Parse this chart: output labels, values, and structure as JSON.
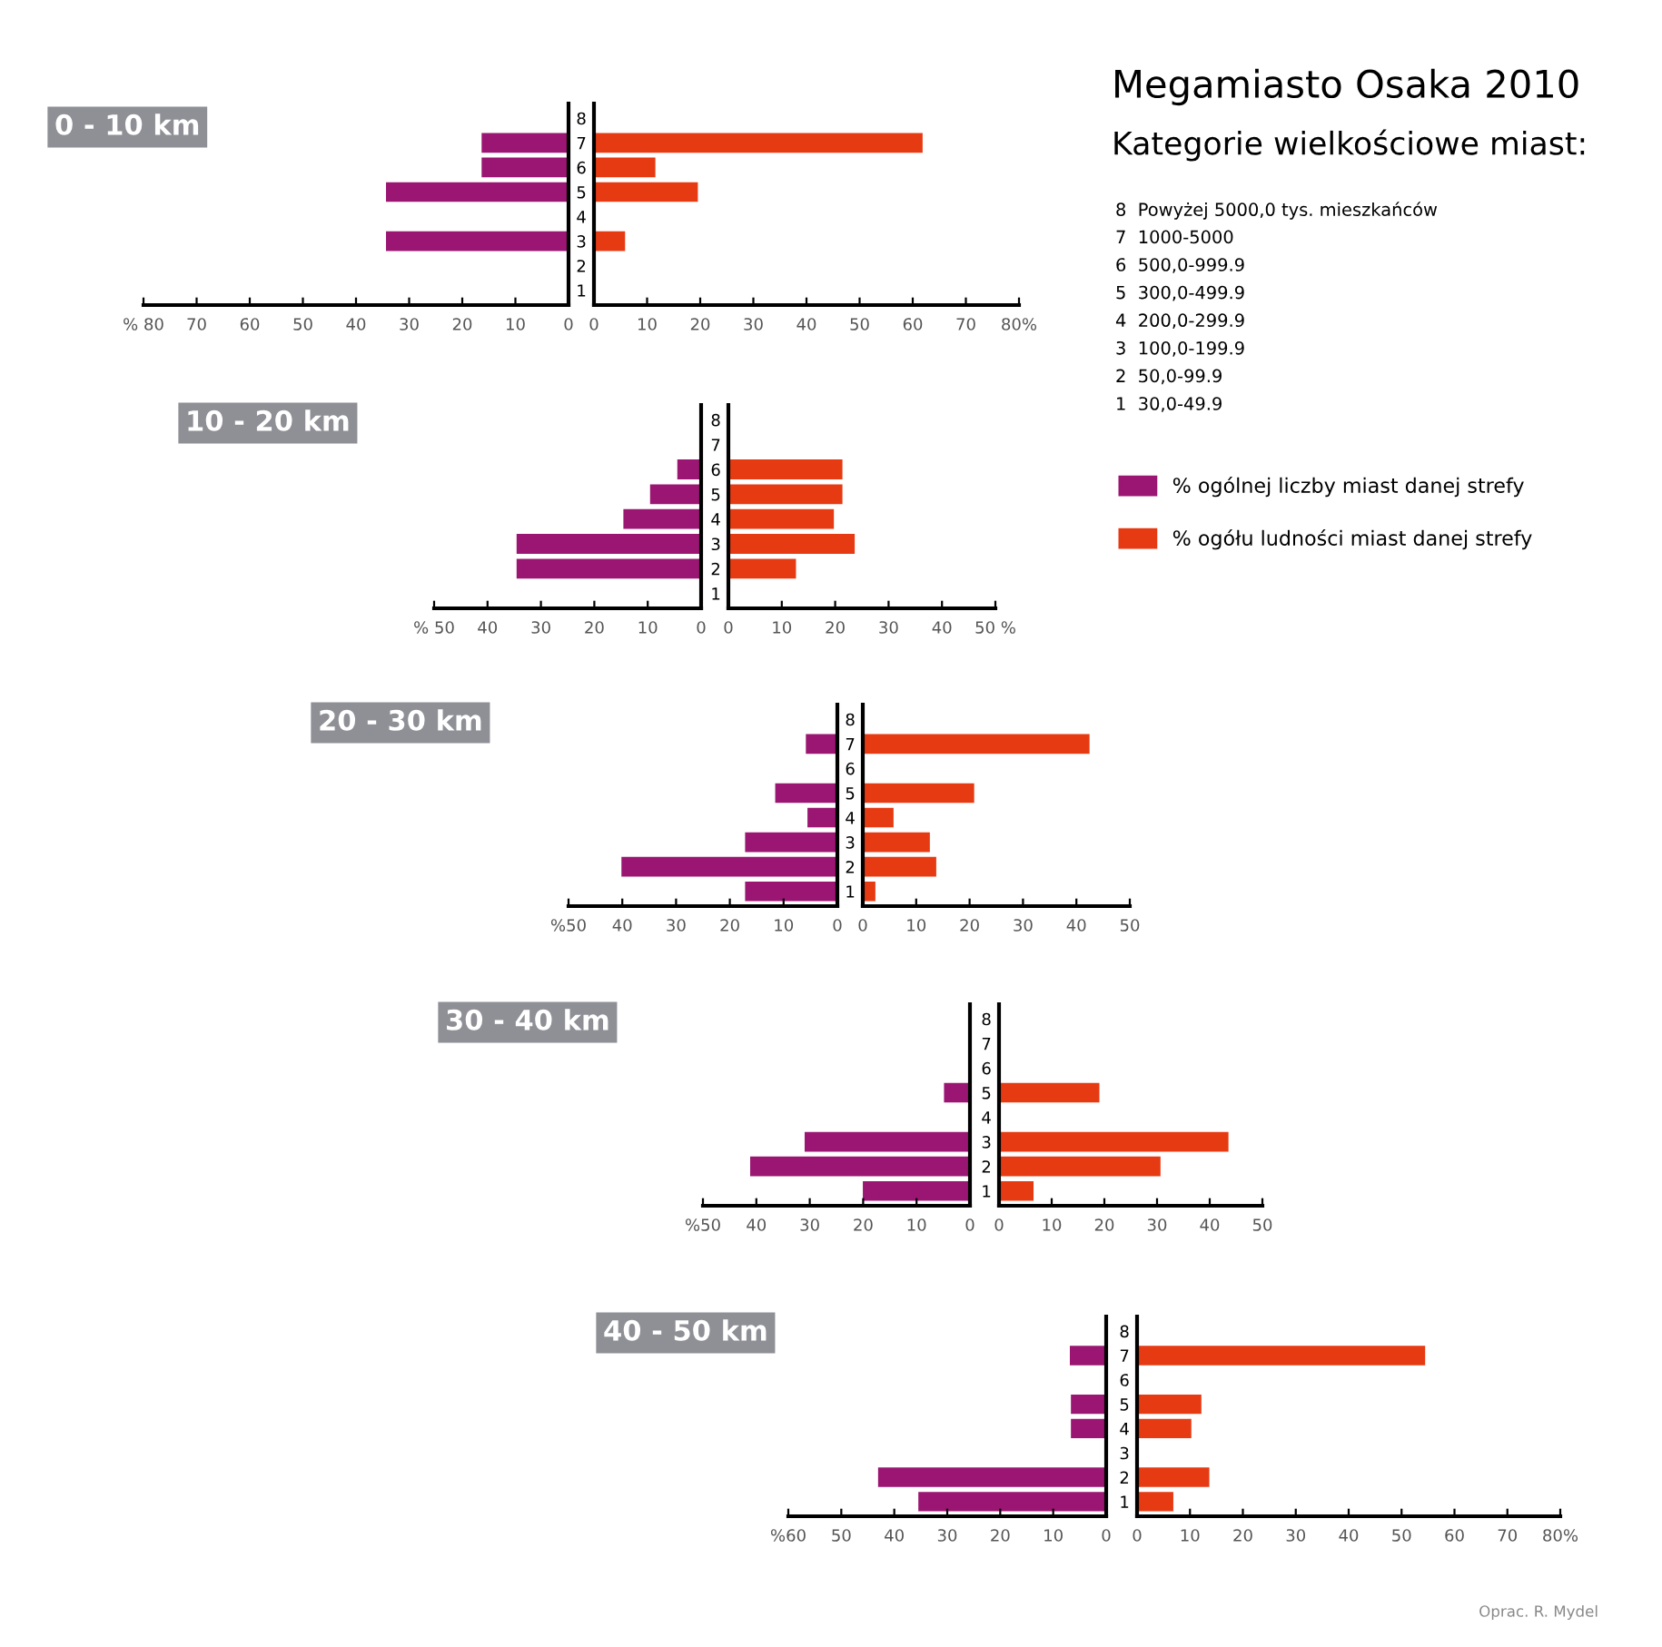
{
  "chart_data": [
    {
      "type": "bar",
      "orientation": "horizontal",
      "title": "0 - 10 km",
      "categories": [
        "8",
        "7",
        "6",
        "5",
        "4",
        "3",
        "2",
        "1"
      ],
      "tick_labels": "x",
      "legend": "right",
      "series": [
        {
          "name": "% ogólnej liczby miast danej strefy",
          "color": "#9a1672",
          "values": [
            null,
            16.5,
            16.5,
            34.5,
            null,
            34.5,
            null,
            null
          ]
        }
      ],
      "xlim": [
        80,
        0
      ],
      "xticks": [
        {
          "value": 80,
          "label": "% 80"
        },
        70,
        60,
        50,
        40,
        30,
        20,
        10,
        0
      ]
    },
    {
      "type": "bar",
      "orientation": "horizontal",
      "categories": [
        "8",
        "7",
        "6",
        "5",
        "4",
        "3",
        "2",
        "1"
      ],
      "legend": "right",
      "series": [
        {
          "name": "% ogółu ludności miast danej strefy",
          "color": "#e63a12",
          "values": [
            null,
            62,
            11.7,
            19.7,
            null,
            6,
            null,
            null
          ]
        }
      ],
      "xlim": [
        0,
        80
      ],
      "xticks": [
        0,
        10,
        20,
        30,
        40,
        50,
        60,
        70,
        {
          "value": 80,
          "label": "80%"
        }
      ]
    },
    {
      "type": "bar",
      "orientation": "horizontal",
      "title": "10 - 20 km",
      "categories": [
        "8",
        "7",
        "6",
        "5",
        "4",
        "3",
        "2",
        "1"
      ],
      "tick_labels": "x",
      "series": [
        {
          "color": "#9a1672",
          "values": [
            null,
            null,
            4.6,
            9.7,
            14.7,
            34.7,
            34.7,
            null
          ]
        }
      ],
      "xlim": [
        50,
        0
      ],
      "xticks": [
        {
          "value": 50,
          "label": "% 50"
        },
        40,
        30,
        20,
        10,
        0
      ]
    },
    {
      "type": "bar",
      "orientation": "horizontal",
      "categories": [
        "8",
        "7",
        "6",
        "5",
        "4",
        "3",
        "2",
        "1"
      ],
      "series": [
        {
          "color": "#e63a12",
          "values": [
            null,
            null,
            21.5,
            21.5,
            19.9,
            23.8,
            12.8,
            null
          ]
        }
      ],
      "xlim": [
        0,
        50
      ],
      "xticks": [
        0,
        10,
        20,
        30,
        40,
        {
          "value": 50,
          "label": "50 %"
        }
      ]
    },
    {
      "type": "bar",
      "orientation": "horizontal",
      "title": "20 - 30 km",
      "categories": [
        "8",
        "7",
        "6",
        "5",
        "4",
        "3",
        "2",
        "1"
      ],
      "tick_labels": "x",
      "series": [
        {
          "color": "#9a1672",
          "values": [
            null,
            6,
            null,
            11.7,
            5.7,
            17.3,
            40.3,
            17.3
          ]
        }
      ],
      "xlim": [
        50,
        0
      ],
      "xticks": [
        {
          "value": 50,
          "label": "%50"
        },
        40,
        30,
        20,
        10,
        0
      ]
    },
    {
      "type": "bar",
      "orientation": "horizontal",
      "categories": [
        "8",
        "7",
        "6",
        "5",
        "4",
        "3",
        "2",
        "1"
      ],
      "series": [
        {
          "color": "#e63a12",
          "values": [
            null,
            42.6,
            null,
            21,
            5.9,
            12.7,
            13.9,
            2.5
          ]
        }
      ],
      "xlim": [
        0,
        50
      ],
      "xticks": [
        0,
        10,
        20,
        30,
        40,
        50
      ]
    },
    {
      "type": "bar",
      "orientation": "horizontal",
      "title": "30 - 40 km",
      "categories": [
        "8",
        "7",
        "6",
        "5",
        "4",
        "3",
        "2",
        "1"
      ],
      "tick_labels": "x",
      "series": [
        {
          "color": "#9a1672",
          "values": [
            null,
            null,
            null,
            5,
            null,
            31.1,
            41.3,
            20.2
          ]
        }
      ],
      "xlim": [
        50,
        0
      ],
      "xticks": [
        {
          "value": 50,
          "label": "%50"
        },
        40,
        30,
        20,
        10,
        0
      ]
    },
    {
      "type": "bar",
      "orientation": "horizontal",
      "categories": [
        "8",
        "7",
        "6",
        "5",
        "4",
        "3",
        "2",
        "1"
      ],
      "series": [
        {
          "color": "#e63a12",
          "values": [
            null,
            null,
            null,
            19.2,
            null,
            43.7,
            30.8,
            6.7
          ]
        }
      ],
      "xlim": [
        0,
        50
      ],
      "xticks": [
        0,
        10,
        20,
        30,
        40,
        50
      ]
    },
    {
      "type": "bar",
      "orientation": "horizontal",
      "title": "40 - 50 km",
      "categories": [
        "8",
        "7",
        "6",
        "5",
        "4",
        "3",
        "2",
        "1"
      ],
      "tick_labels": "x",
      "series": [
        {
          "color": "#9a1672",
          "values": [
            null,
            7,
            null,
            6.8,
            6.8,
            null,
            43.2,
            35.6
          ]
        }
      ],
      "xlim": [
        60,
        0
      ],
      "xticks": [
        {
          "value": 60,
          "label": "%60"
        },
        50,
        40,
        30,
        20,
        10,
        0
      ]
    },
    {
      "type": "bar",
      "orientation": "horizontal",
      "categories": [
        "8",
        "7",
        "6",
        "5",
        "4",
        "3",
        "2",
        "1"
      ],
      "series": [
        {
          "color": "#e63a12",
          "values": [
            null,
            54.6,
            null,
            12.3,
            10.4,
            null,
            13.8,
            7
          ]
        }
      ],
      "xlim": [
        0,
        80
      ],
      "xticks": [
        0,
        10,
        20,
        30,
        40,
        50,
        60,
        70,
        {
          "value": 80,
          "label": "80%"
        }
      ]
    },
    {
      "type": "other",
      "title": "Megamiasto Osaka 2010",
      "subtitle": "Kategorie wielkościowe miast:",
      "annotations": [
        "8  Powyżej 5000,0 tys. mieszkańców",
        "7  1000-5000",
        "6  500,0-999.9",
        "5  300,0-499.9",
        "4  200,0-299.9",
        "3  100,0-199.9",
        "2  50,0-99.9",
        "1  30,0-49.9",
        "Oprac. R. Mydel"
      ]
    }
  ]
}
